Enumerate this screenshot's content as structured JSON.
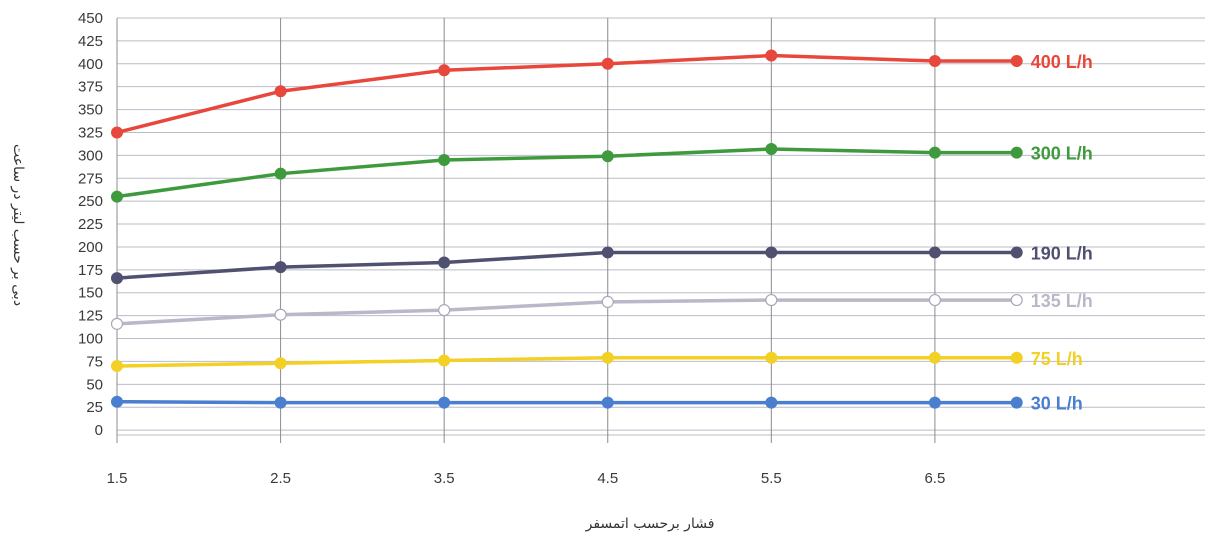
{
  "chart_data": {
    "type": "line",
    "title": "",
    "xlabel": "فشار برحسب اتمسفر",
    "ylabel": "دبی بر حسب لیتر در ساعت",
    "x": [
      1.5,
      2.5,
      3.5,
      4.5,
      5.5,
      6.5,
      7.0
    ],
    "xticks": [
      "1.5",
      "2.5",
      "3.5",
      "4.5",
      "5.5",
      "6.5"
    ],
    "xlim": [
      1.5,
      8.2
    ],
    "yticks": [
      "0",
      "25",
      "50",
      "75",
      "100",
      "125",
      "150",
      "175",
      "200",
      "225",
      "250",
      "275",
      "300",
      "325",
      "350",
      "375",
      "400",
      "425",
      "450"
    ],
    "ylim": [
      -25,
      450
    ],
    "grid": true,
    "series": [
      {
        "name": "400 L/h",
        "color": "#e8473c",
        "marker": "filled",
        "values": [
          325,
          370,
          393,
          400,
          409,
          403,
          403
        ]
      },
      {
        "name": "300 L/h",
        "color": "#3f9a3e",
        "marker": "filled",
        "values": [
          255,
          280,
          295,
          299,
          307,
          303,
          303
        ]
      },
      {
        "name": "190 L/h",
        "color": "#505070",
        "marker": "filled",
        "values": [
          166,
          178,
          183,
          194,
          194,
          194,
          194
        ]
      },
      {
        "name": "135 L/h",
        "color": "#b8b8c8",
        "marker": "open",
        "values": [
          116,
          126,
          131,
          140,
          142,
          142,
          142
        ]
      },
      {
        "name": "75 L/h",
        "color": "#f2d024",
        "marker": "filled",
        "values": [
          70,
          73,
          76,
          79,
          79,
          79,
          79
        ]
      },
      {
        "name": "30 L/h",
        "color": "#4a7fcf",
        "marker": "filled",
        "values": [
          31,
          30,
          30,
          30,
          30,
          30,
          30
        ]
      }
    ]
  }
}
